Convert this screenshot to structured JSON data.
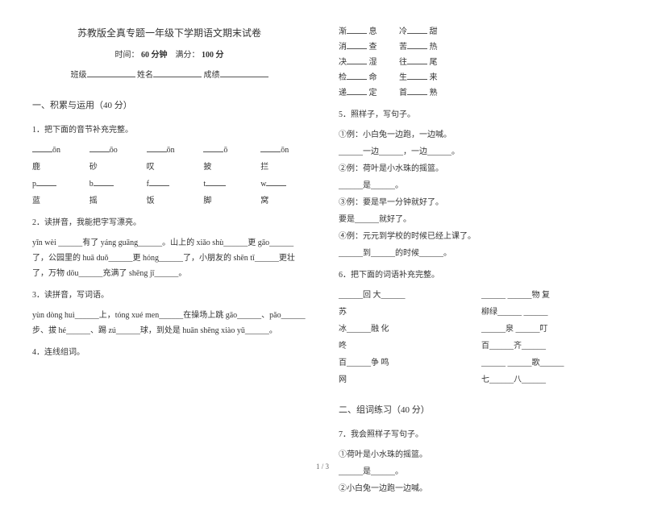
{
  "header": {
    "title": "苏教版全真专题一年级下学期语文期末试卷",
    "time_label": "时间：",
    "time_value": "60 分钟",
    "score_label": "满分：",
    "score_value": "100 分",
    "class_label": "班级",
    "name_label": "姓名",
    "grade_label": "成绩"
  },
  "section1": {
    "heading": "一、积累与运用（40 分）",
    "q1": "1．把下面的音节补充完整。",
    "q1_row1": [
      "ōn",
      "ōo",
      "ōn",
      "ō",
      "ōn"
    ],
    "q1_row2": [
      "鹿",
      "砂",
      "叹",
      "披",
      "拦"
    ],
    "q1_row3": [
      "p",
      "b",
      "f",
      "t",
      "w"
    ],
    "q1_row4": [
      "蓝",
      "摇",
      "饭",
      "脚",
      "窝"
    ],
    "q2": "2．读拼音，我能把字写漂亮。",
    "q2_text": "yīn  wèi ______有了 yáng  guāng______。山上的 xiǎo shù______更 gāo______了，公园里的 huā duǒ______更 hóng______了，小朋友的 shēn tǐ______更壮了，万物 dōu______充满了 shēng  jī______。",
    "q3": "3．读拼音，写词语。",
    "q3_text": "yùn  dòng  huì______上，tóng  xué  men______在操场上跳 gāo______、pǎo______步、拔 hé______、踢 zú______球，到处是 huān shēng xiào yǔ______。",
    "q4": "4．连线组词。"
  },
  "right": {
    "pairs": [
      [
        "渐",
        "息"
      ],
      [
        "冷",
        "甜"
      ],
      [
        "消",
        "查"
      ],
      [
        "苦",
        "热"
      ],
      [
        "决",
        "湿"
      ],
      [
        "往",
        "尾"
      ],
      [
        "检",
        "命"
      ],
      [
        "生",
        "来"
      ],
      [
        "递",
        "定"
      ],
      [
        "首",
        "熟"
      ]
    ],
    "q5": "5．照样子，写句子。",
    "q5_lines": [
      "①例：小白兔一边跑，一边喊。",
      "______一边______，一边______。",
      "②例：荷叶是小水珠的摇篮。",
      "______是______。",
      "③例：要是早一分钟就好了。",
      "要是______就好了。",
      "④例：元元到学校的时候已经上课了。",
      "______到______的时候______。"
    ],
    "q6": "6．把下面的词语补充完整。",
    "q6_rows": [
      [
        "______回  大______",
        "______  ______物  复"
      ],
      [
        "苏",
        "柳绿______  ______"
      ],
      [
        "冰______融  化",
        "______泉  ______叮"
      ],
      [
        "咚",
        "百______齐______"
      ],
      [
        "百______争 鸣",
        "______  ______歌______"
      ],
      [
        "网",
        "七______八______"
      ]
    ],
    "section2h": "二、组词练习（40 分）",
    "q7": "7．我会照样子写句子。",
    "q7_lines": [
      "①荷叶是小水珠的摇篮。",
      "______是______。",
      "②小白兔一边跑一边喊。"
    ]
  },
  "pagenum": "1 / 3"
}
